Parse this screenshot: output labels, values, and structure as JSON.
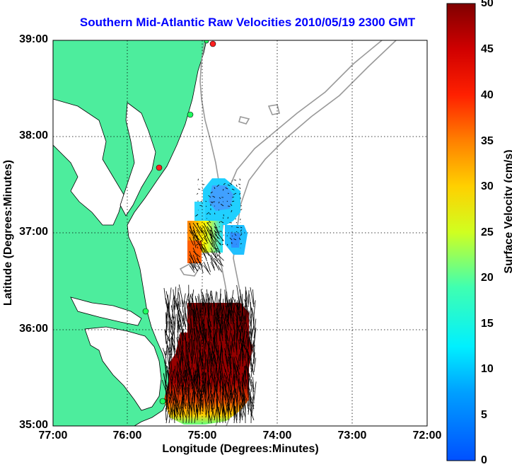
{
  "title": "Southern Mid-Atlantic Raw Velocities 2010/05/19 2300 GMT",
  "x_axis": {
    "label": "Longitude (Degrees:Minutes)",
    "ticks": [
      "77:00",
      "76:00",
      "75:00",
      "74:00",
      "73:00",
      "72:00"
    ]
  },
  "y_axis": {
    "label": "Latitude (Degrees:Minutes)",
    "ticks": [
      "39:00",
      "38:00",
      "37:00",
      "36:00",
      "35:00"
    ]
  },
  "colorbar": {
    "label": "Surface Velocity (cm/s)",
    "ticks": [
      "50",
      "45",
      "40",
      "35",
      "30",
      "25",
      "20",
      "15",
      "10",
      "5",
      "0"
    ],
    "range": [
      0,
      50
    ]
  },
  "colors": {
    "land": "#4ded9d",
    "coastline": "#000000",
    "bathymetry": "#999999",
    "grid": "#000000"
  }
}
